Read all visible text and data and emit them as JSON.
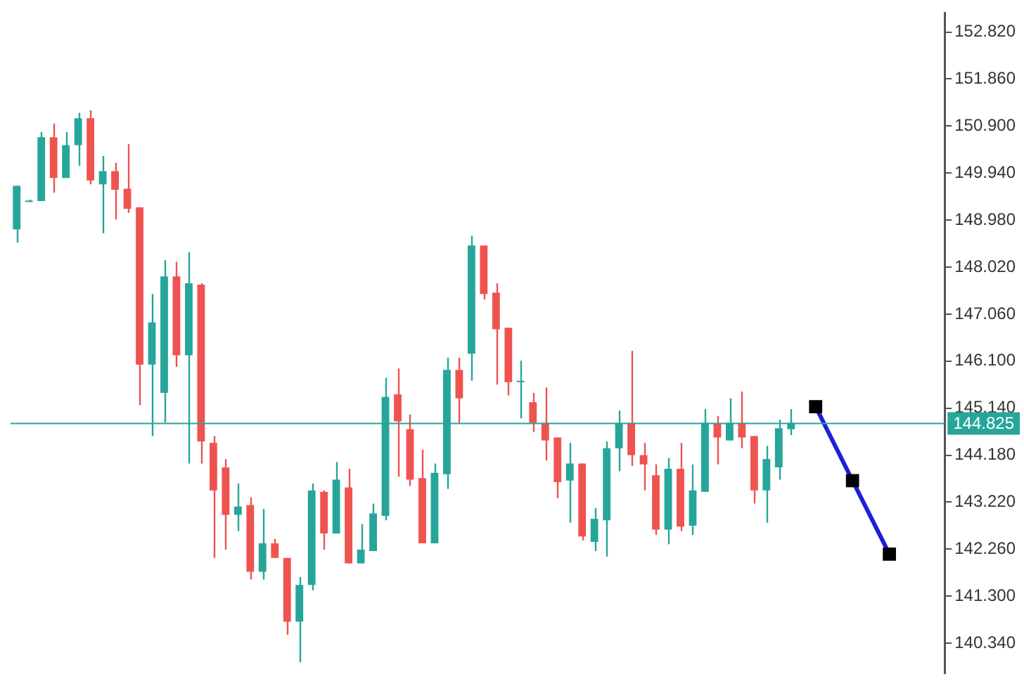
{
  "chart_data": {
    "type": "candlestick",
    "categories": [
      null,
      null,
      null,
      null,
      null,
      null,
      null,
      null,
      null,
      null,
      null,
      null,
      null,
      null,
      null,
      null,
      null,
      null,
      null,
      null,
      null,
      null,
      null,
      null,
      null,
      null,
      null,
      null,
      null,
      null,
      null,
      null,
      null,
      null,
      null,
      null,
      null,
      null,
      null,
      null,
      null,
      null,
      null,
      null,
      null,
      null,
      null,
      null,
      null,
      null,
      null,
      null,
      null,
      null,
      null,
      null,
      null,
      null,
      null,
      null,
      null,
      null,
      null,
      null,
      null,
      null,
      null,
      null,
      null,
      null,
      null,
      null,
      null,
      null,
      null,
      null
    ],
    "ohlc": [
      [
        148.79,
        149.68,
        148.52,
        149.68
      ],
      [
        149.35,
        149.4,
        149.35,
        149.37
      ],
      [
        149.37,
        150.78,
        149.37,
        150.67
      ],
      [
        150.67,
        150.95,
        149.54,
        149.84
      ],
      [
        149.84,
        150.78,
        149.84,
        150.51
      ],
      [
        150.51,
        151.17,
        150.09,
        151.06
      ],
      [
        151.06,
        151.22,
        149.71,
        149.79
      ],
      [
        149.71,
        150.29,
        148.71,
        149.98
      ],
      [
        149.98,
        150.15,
        148.99,
        149.6
      ],
      [
        149.62,
        150.53,
        149.13,
        149.21
      ],
      [
        149.24,
        149.24,
        145.2,
        146.03
      ],
      [
        146.03,
        147.47,
        144.57,
        146.89
      ],
      [
        145.45,
        148.16,
        144.84,
        147.83
      ],
      [
        147.83,
        148.13,
        145.98,
        146.22
      ],
      [
        146.22,
        148.32,
        144.01,
        147.69
      ],
      [
        147.66,
        147.69,
        144.01,
        144.46
      ],
      [
        144.43,
        144.57,
        142.08,
        143.46
      ],
      [
        143.93,
        144.1,
        142.25,
        142.96
      ],
      [
        142.96,
        143.6,
        142.63,
        143.13
      ],
      [
        143.16,
        143.32,
        141.64,
        141.8
      ],
      [
        141.8,
        143.08,
        141.64,
        142.38
      ],
      [
        142.38,
        142.47,
        142.08,
        142.08
      ],
      [
        142.08,
        142.08,
        140.51,
        140.78
      ],
      [
        140.78,
        141.69,
        139.95,
        141.53
      ],
      [
        141.53,
        143.6,
        141.42,
        143.46
      ],
      [
        143.43,
        143.46,
        142.25,
        142.58
      ],
      [
        142.58,
        144.04,
        142.58,
        143.68
      ],
      [
        143.52,
        143.9,
        141.97,
        141.97
      ],
      [
        141.97,
        142.77,
        141.97,
        142.25
      ],
      [
        142.22,
        143.19,
        142.22,
        142.99
      ],
      [
        142.94,
        145.76,
        142.85,
        145.37
      ],
      [
        145.42,
        145.95,
        143.74,
        144.87
      ],
      [
        144.71,
        145.01,
        143.55,
        143.68
      ],
      [
        143.71,
        144.29,
        142.38,
        142.38
      ],
      [
        142.38,
        144.01,
        142.38,
        143.82
      ],
      [
        143.79,
        146.17,
        143.49,
        145.92
      ],
      [
        145.92,
        146.17,
        144.84,
        145.34
      ],
      [
        146.25,
        148.66,
        145.7,
        148.46
      ],
      [
        148.46,
        148.46,
        147.36,
        147.47
      ],
      [
        147.5,
        147.69,
        145.62,
        146.75
      ],
      [
        146.78,
        146.78,
        145.4,
        145.67
      ],
      [
        145.67,
        146.11,
        144.93,
        145.7
      ],
      [
        145.26,
        145.45,
        144.65,
        144.84
      ],
      [
        144.84,
        145.56,
        144.07,
        144.48
      ],
      [
        144.54,
        144.54,
        143.3,
        143.63
      ],
      [
        143.66,
        144.43,
        142.8,
        144.01
      ],
      [
        144.01,
        144.01,
        142.44,
        142.52
      ],
      [
        142.41,
        143.1,
        142.22,
        142.88
      ],
      [
        142.85,
        144.46,
        142.11,
        144.32
      ],
      [
        144.32,
        145.09,
        143.85,
        144.84
      ],
      [
        144.84,
        146.31,
        143.96,
        144.18
      ],
      [
        144.18,
        144.43,
        143.46,
        143.99
      ],
      [
        143.77,
        143.99,
        142.55,
        142.66
      ],
      [
        142.66,
        144.12,
        142.36,
        143.9
      ],
      [
        143.9,
        144.43,
        142.63,
        142.72
      ],
      [
        142.74,
        143.99,
        142.55,
        143.46
      ],
      [
        143.43,
        145.12,
        143.43,
        144.84
      ],
      [
        144.82,
        144.98,
        143.99,
        144.54
      ],
      [
        144.48,
        145.34,
        144.48,
        144.84
      ],
      [
        144.84,
        145.48,
        144.32,
        144.54
      ],
      [
        144.57,
        144.57,
        143.19,
        143.46
      ],
      [
        143.46,
        144.37,
        142.8,
        144.1
      ],
      [
        143.93,
        144.9,
        143.68,
        144.73
      ],
      [
        144.71,
        145.12,
        144.59,
        144.84
      ],
      null,
      null,
      null,
      null,
      null,
      null,
      null,
      null,
      null,
      null,
      null,
      null
    ],
    "colors": [
      "#26a69a",
      "#26a69a",
      "#26a69a",
      "#ef5350",
      "#26a69a",
      "#26a69a",
      "#ef5350",
      "#26a69a",
      "#ef5350",
      "#ef5350",
      "#ef5350",
      "#26a69a",
      "#26a69a",
      "#ef5350",
      "#26a69a",
      "#ef5350",
      "#ef5350",
      "#ef5350",
      "#26a69a",
      "#ef5350",
      "#26a69a",
      "#ef5350",
      "#ef5350",
      "#26a69a",
      "#26a69a",
      "#ef5350",
      "#26a69a",
      "#ef5350",
      "#26a69a",
      "#26a69a",
      "#26a69a",
      "#ef5350",
      "#ef5350",
      "#ef5350",
      "#26a69a",
      "#26a69a",
      "#ef5350",
      "#26a69a",
      "#ef5350",
      "#ef5350",
      "#ef5350",
      "#26a69a",
      "#ef5350",
      "#ef5350",
      "#ef5350",
      "#26a69a",
      "#ef5350",
      "#26a69a",
      "#26a69a",
      "#26a69a",
      "#ef5350",
      "#ef5350",
      "#ef5350",
      "#26a69a",
      "#ef5350",
      "#26a69a",
      "#26a69a",
      "#ef5350",
      "#26a69a",
      "#ef5350",
      "#ef5350",
      "#26a69a",
      "#26a69a",
      "#26a69a",
      null,
      null,
      null,
      null,
      null,
      null,
      null,
      null,
      null,
      null,
      null,
      null
    ],
    "series": [
      {
        "type": "line",
        "color": "#1f1fd6",
        "marker": "square",
        "values": [
          null,
          null,
          null,
          null,
          null,
          null,
          null,
          null,
          null,
          null,
          null,
          null,
          null,
          null,
          null,
          null,
          null,
          null,
          null,
          null,
          null,
          null,
          null,
          null,
          null,
          null,
          null,
          null,
          null,
          null,
          null,
          null,
          null,
          null,
          null,
          null,
          null,
          null,
          null,
          null,
          null,
          null,
          null,
          null,
          null,
          null,
          null,
          null,
          null,
          null,
          null,
          null,
          null,
          null,
          null,
          null,
          null,
          null,
          null,
          null,
          null,
          null,
          null,
          null,
          null,
          145.17,
          null,
          null,
          143.66,
          null,
          null,
          142.16,
          null,
          null,
          null,
          null
        ]
      }
    ],
    "ylim": [
      139.73,
      153.21
    ],
    "yticks": [
      {
        "value": 152.82,
        "label": "152.820"
      },
      {
        "value": 151.86,
        "label": "151.860"
      },
      {
        "value": 150.9,
        "label": "150.900"
      },
      {
        "value": 149.94,
        "label": "149.940"
      },
      {
        "value": 148.98,
        "label": "148.980"
      },
      {
        "value": 148.02,
        "label": "148.020"
      },
      {
        "value": 147.06,
        "label": "147.060"
      },
      {
        "value": 146.1,
        "label": "146.100"
      },
      {
        "value": 145.14,
        "label": "145.140"
      },
      {
        "value": 144.18,
        "label": "144.180"
      },
      {
        "value": 143.22,
        "label": "143.220"
      },
      {
        "value": 142.26,
        "label": "142.260"
      },
      {
        "value": 141.3,
        "label": "141.300"
      },
      {
        "value": 140.34,
        "label": "140.340"
      }
    ],
    "ref_lines": [
      {
        "axis": "y",
        "value": 144.825,
        "label": "144.825",
        "color": "#26a69a"
      }
    ],
    "tick_labels": "y",
    "grid": false,
    "legend": false
  }
}
